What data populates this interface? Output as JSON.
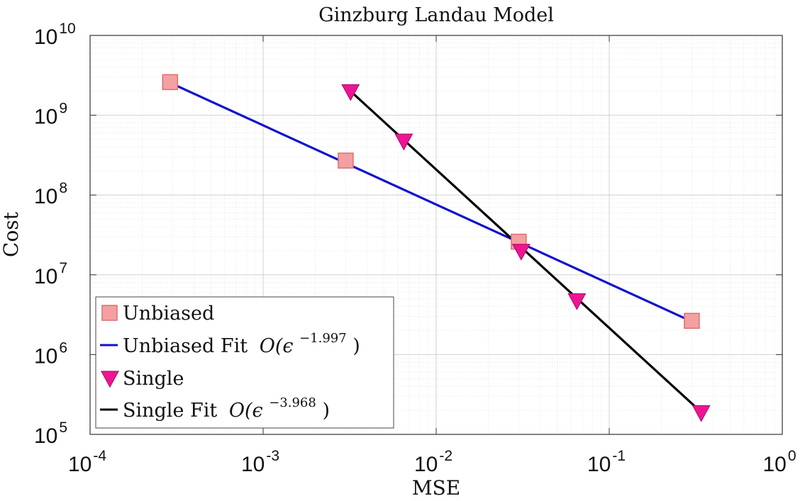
{
  "chart_data": {
    "type": "scatter",
    "title": "Ginzburg Landau Model",
    "xlabel": "MSE",
    "ylabel": "Cost",
    "xscale": "log",
    "yscale": "log",
    "xlim": [
      0.0001,
      1
    ],
    "ylim": [
      100000,
      10000000000
    ],
    "grid": true,
    "minor_grid": true,
    "legend_position": "bottom-left",
    "x_ticks": [
      {
        "base": "10",
        "exp": "-4"
      },
      {
        "base": "10",
        "exp": "-3"
      },
      {
        "base": "10",
        "exp": "-2"
      },
      {
        "base": "10",
        "exp": "-1"
      },
      {
        "base": "10",
        "exp": "0"
      }
    ],
    "y_ticks": [
      {
        "base": "10",
        "exp": "5"
      },
      {
        "base": "10",
        "exp": "6"
      },
      {
        "base": "10",
        "exp": "7"
      },
      {
        "base": "10",
        "exp": "8"
      },
      {
        "base": "10",
        "exp": "9"
      },
      {
        "base": "10",
        "exp": "10"
      }
    ],
    "series": [
      {
        "name": "Unbiased",
        "kind": "marker",
        "marker": "square",
        "color": "#F4A0A0",
        "edge_color": "#D87070",
        "points": [
          {
            "x": 0.00029,
            "y": 2600000000
          },
          {
            "x": 0.003,
            "y": 270000000
          },
          {
            "x": 0.03,
            "y": 26000000
          },
          {
            "x": 0.3,
            "y": 2650000
          }
        ]
      },
      {
        "name": "Unbiased Fit",
        "legend_math": "O(ϵ",
        "legend_exp": "−1.997",
        "legend_close": ")",
        "kind": "line",
        "color": "#1010D0",
        "points": [
          {
            "x": 0.00029,
            "y": 2550000000
          },
          {
            "x": 0.3,
            "y": 2600000
          }
        ]
      },
      {
        "name": "Single",
        "kind": "marker",
        "marker": "triangle-down",
        "color": "#EE1493",
        "edge_color": "#B0106E",
        "points": [
          {
            "x": 0.0032,
            "y": 2000000000
          },
          {
            "x": 0.0065,
            "y": 480000000
          },
          {
            "x": 0.031,
            "y": 20000000
          },
          {
            "x": 0.065,
            "y": 4800000
          },
          {
            "x": 0.34,
            "y": 190000
          }
        ]
      },
      {
        "name": "Single Fit",
        "legend_math": "O(ϵ",
        "legend_exp": "−3.968",
        "legend_close": ")",
        "kind": "line",
        "color": "#000000",
        "points": [
          {
            "x": 0.0032,
            "y": 2000000000
          },
          {
            "x": 0.34,
            "y": 190000
          }
        ]
      }
    ]
  }
}
